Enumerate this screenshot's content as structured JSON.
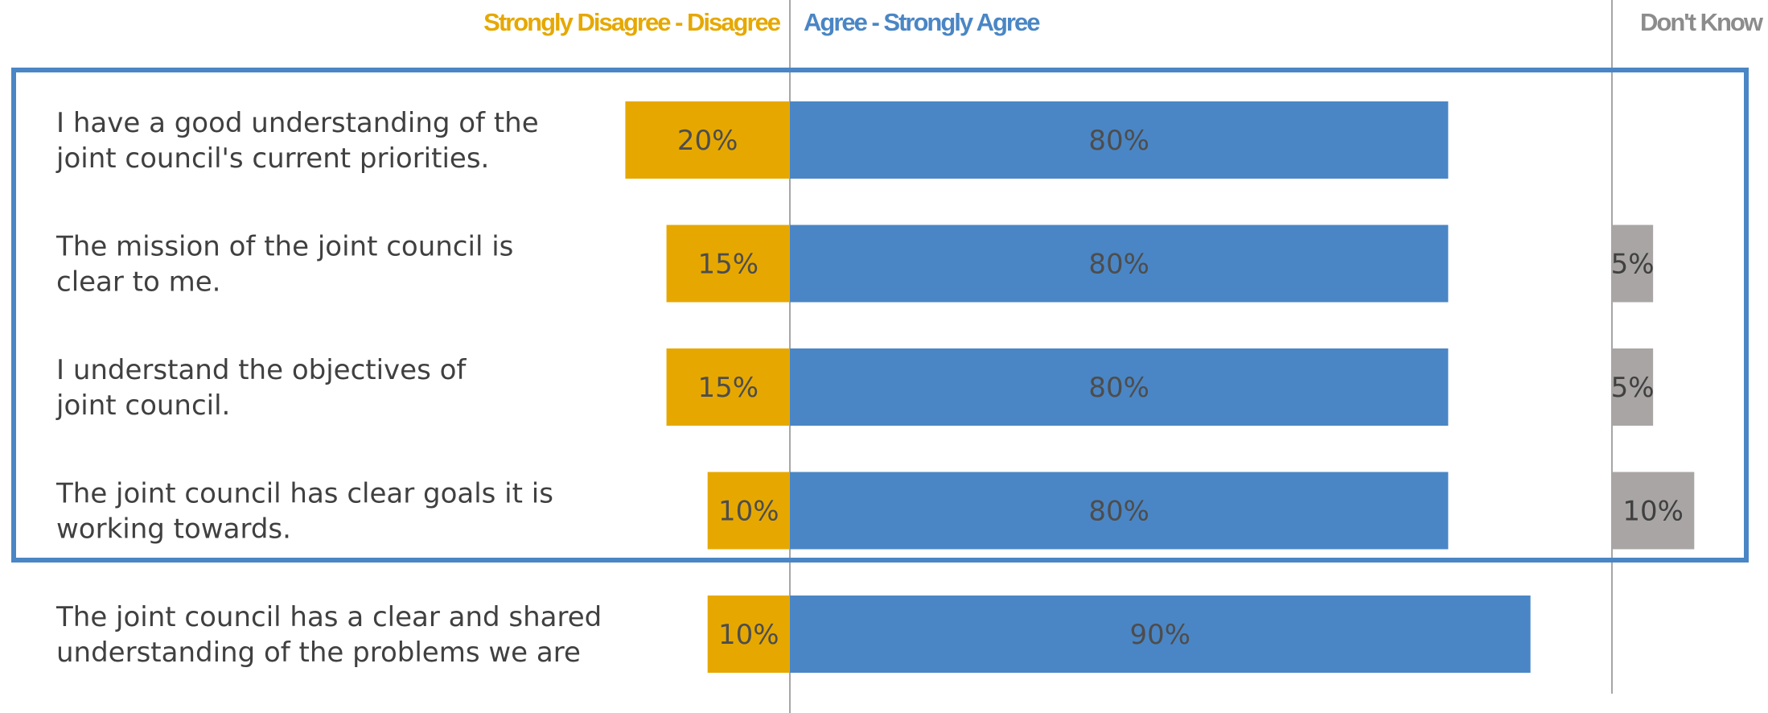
{
  "chart_data": {
    "type": "bar",
    "stacked": "diverging",
    "column_headers": {
      "disagree": "Strongly Disagree - Disagree",
      "agree": "Agree - Strongly Agree",
      "dont_know": "Don't Know"
    },
    "categories": [
      [
        "I have a good understanding of the",
        "joint council's current priorities."
      ],
      [
        "The mission of the joint council is",
        "clear to me."
      ],
      [
        "I understand the objectives of",
        "joint council."
      ],
      [
        "The joint council has clear goals it is",
        "working towards."
      ],
      [
        "The joint council has a clear and shared",
        "understanding of the problems we are"
      ]
    ],
    "series": [
      {
        "name": "Strongly Disagree - Disagree",
        "values": [
          20,
          15,
          15,
          10,
          10
        ],
        "labels": [
          "20%",
          "15%",
          "15%",
          "10%",
          "10%"
        ]
      },
      {
        "name": "Agree - Strongly Agree",
        "values": [
          80,
          80,
          80,
          80,
          90
        ],
        "labels": [
          "80%",
          "80%",
          "80%",
          "80%",
          "90%"
        ]
      },
      {
        "name": "Don't Know",
        "values": [
          0,
          5,
          5,
          10,
          0
        ],
        "labels": [
          "",
          "5%",
          "5%",
          "10%",
          ""
        ]
      }
    ],
    "highlight": {
      "rows": [
        0,
        1,
        2,
        3
      ],
      "color": "#4a86c5"
    },
    "colors": {
      "disagree": "#e6a800",
      "agree": "#4a86c5",
      "dont_know": "#aaa5a5",
      "label_text": "#4d4d4d",
      "category_text": "#404040",
      "axis_line": "#a6a6a6"
    }
  }
}
